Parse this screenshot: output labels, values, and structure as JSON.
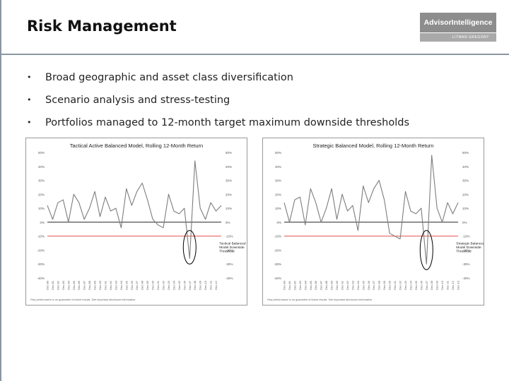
{
  "slide": {
    "title": "Risk Management",
    "logo": {
      "brand": "AdvisorIntelligence",
      "sub": "LITMAN GREGORY"
    },
    "bullets": [
      "Broad geographic and asset class diversification",
      "Scenario analysis and stress-testing",
      "Portfolios managed to 12-month target maximum downside thresholds"
    ]
  },
  "colors": {
    "series": "#7d7d7d",
    "threshold": "#e03c31",
    "annotation": "#000000",
    "zero_line": "#000000"
  },
  "chart_data": [
    {
      "type": "line",
      "title": "Tactical Active Balanced Model, Rolling 12-Month Return",
      "y_ticks": [
        "50%",
        "40%",
        "30%",
        "20%",
        "10%",
        "0%",
        "-10%",
        "-20%",
        "-30%",
        "-40%"
      ],
      "ylim": [
        -40,
        50
      ],
      "threshold": -10,
      "annotation": "Tactical Balanced Model Downside Threshold",
      "footnote": "Past performance is no guarantee of future results. See important disclosure information.",
      "x_labels": [
        "Dec-80",
        "Dec-81",
        "Dec-82",
        "Dec-83",
        "Dec-84",
        "Dec-85",
        "Dec-86",
        "Dec-87",
        "Dec-88",
        "Dec-89",
        "Dec-90",
        "Dec-91",
        "Dec-92",
        "Dec-93",
        "Dec-94",
        "Dec-95",
        "Dec-96",
        "Dec-97",
        "Dec-98",
        "Dec-99",
        "Dec-00",
        "Dec-01",
        "Dec-02",
        "Dec-03",
        "Dec-04",
        "Dec-05",
        "Dec-06",
        "Dec-07",
        "Dec-08",
        "Dec-09",
        "Dec-10",
        "Dec-11",
        "Dec-12"
      ],
      "x": [
        "Dec-80",
        "Dec-81",
        "Dec-82",
        "Dec-83",
        "Dec-84",
        "Dec-85",
        "Dec-86",
        "Dec-87",
        "Dec-88",
        "Dec-89",
        "Dec-90",
        "Dec-91",
        "Dec-92",
        "Dec-93",
        "Dec-94",
        "Dec-95",
        "Dec-96",
        "Dec-97",
        "Dec-98",
        "Dec-99",
        "Dec-00",
        "Dec-01",
        "Dec-02",
        "Dec-03",
        "Dec-04",
        "Dec-05",
        "Dec-06",
        "Dec-07",
        "Dec-08",
        "Dec-09",
        "Dec-10",
        "Dec-11",
        "Dec-12",
        "Dec-13"
      ],
      "values": [
        12,
        2,
        14,
        16,
        0,
        20,
        14,
        2,
        10,
        22,
        4,
        18,
        8,
        10,
        -4,
        24,
        12,
        22,
        28,
        16,
        2,
        -2,
        -4,
        20,
        8,
        6,
        10,
        -26,
        44,
        10,
        2,
        14,
        8,
        12
      ]
    },
    {
      "type": "line",
      "title": "Strategic Balanced Model, Rolling 12-Month Return",
      "y_ticks": [
        "50%",
        "40%",
        "30%",
        "20%",
        "10%",
        "0%",
        "-10%",
        "-20%",
        "-30%",
        "-40%"
      ],
      "ylim": [
        -40,
        50
      ],
      "threshold": -10,
      "annotation": "Strategic Balanced Model Downside Threshold",
      "footnote": "Past performance is no guarantee of future results. See important disclosure information.",
      "x_labels": [
        "Dec-80",
        "Dec-81",
        "Dec-82",
        "Dec-83",
        "Dec-84",
        "Dec-85",
        "Dec-86",
        "Dec-87",
        "Dec-88",
        "Dec-89",
        "Dec-90",
        "Dec-91",
        "Dec-92",
        "Dec-93",
        "Dec-94",
        "Dec-95",
        "Dec-96",
        "Dec-97",
        "Dec-98",
        "Dec-99",
        "Dec-00",
        "Dec-01",
        "Dec-02",
        "Dec-03",
        "Dec-04",
        "Dec-05",
        "Dec-06",
        "Dec-07",
        "Dec-08",
        "Dec-09",
        "Dec-10",
        "Dec-11",
        "Dec-12",
        "Dec-13"
      ],
      "x": [
        "Dec-80",
        "Dec-81",
        "Dec-82",
        "Dec-83",
        "Dec-84",
        "Dec-85",
        "Dec-86",
        "Dec-87",
        "Dec-88",
        "Dec-89",
        "Dec-90",
        "Dec-91",
        "Dec-92",
        "Dec-93",
        "Dec-94",
        "Dec-95",
        "Dec-96",
        "Dec-97",
        "Dec-98",
        "Dec-99",
        "Dec-00",
        "Dec-01",
        "Dec-02",
        "Dec-03",
        "Dec-04",
        "Dec-05",
        "Dec-06",
        "Dec-07",
        "Dec-08",
        "Dec-09",
        "Dec-10",
        "Dec-11",
        "Dec-12",
        "Dec-13"
      ],
      "values": [
        14,
        0,
        16,
        18,
        -2,
        24,
        14,
        0,
        10,
        24,
        2,
        20,
        8,
        12,
        -6,
        26,
        14,
        24,
        30,
        16,
        -8,
        -10,
        -12,
        22,
        8,
        6,
        10,
        -30,
        48,
        10,
        0,
        14,
        6,
        14
      ]
    }
  ]
}
